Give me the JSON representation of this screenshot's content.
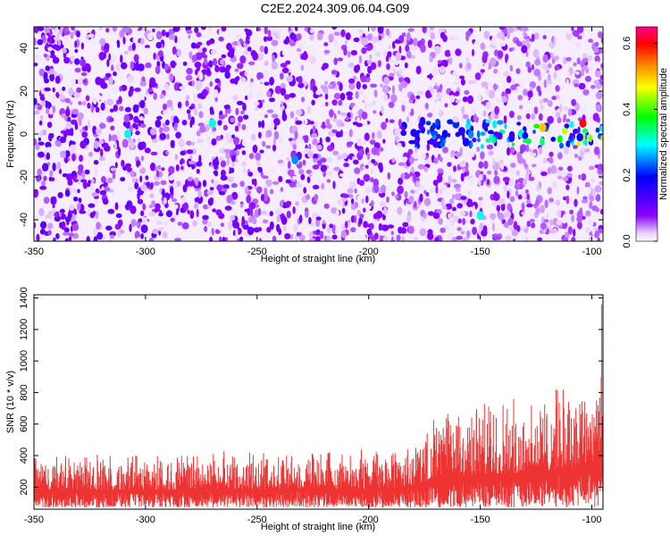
{
  "title": "C2E2.2024.309.06.04.G09",
  "chart_data": [
    {
      "type": "heatmap",
      "xlabel": "Height of straight line (km)",
      "ylabel": "Frequency (Hz)",
      "xlim": [
        -350,
        -95
      ],
      "ylim": [
        -50,
        50
      ],
      "x_ticks": [
        -350,
        -300,
        -250,
        -200,
        -150,
        -100
      ],
      "y_ticks": [
        -40,
        -20,
        0,
        20,
        40
      ],
      "colorbar": {
        "label": "Normalized spectral amplitude",
        "range": [
          0.0,
          0.65
        ],
        "ticks": [
          0.0,
          0.2,
          0.4,
          0.6
        ],
        "colors": [
          "#ffffff",
          "#8a00ff",
          "#0000ff",
          "#00ffff",
          "#00ff00",
          "#ffff00",
          "#ff8800",
          "#ff0000",
          "#ff0088"
        ]
      },
      "signal_band": {
        "frequency_hz": 0,
        "from_km": -185,
        "to_km": -95,
        "peak_amplitude": 0.6
      },
      "features": [
        {
          "x_km": -308,
          "y_hz": 0,
          "amplitude": 0.3
        },
        {
          "x_km": -270,
          "y_hz": 5,
          "amplitude": 0.3
        },
        {
          "x_km": -233,
          "y_hz": -12,
          "amplitude": 0.25
        },
        {
          "x_km": -150,
          "y_hz": -38,
          "amplitude": 0.3
        },
        {
          "x_km": -122,
          "y_hz": 3,
          "amplitude": 0.5
        },
        {
          "x_km": -104,
          "y_hz": 5,
          "amplitude": 0.6
        }
      ]
    },
    {
      "type": "area",
      "xlabel": "Height of straight line (km)",
      "ylabel": "SNR (10 * v/v)",
      "xlim": [
        -350,
        -95
      ],
      "ylim": [
        60,
        1420
      ],
      "x_ticks": [
        -350,
        -300,
        -250,
        -200,
        -150,
        -100
      ],
      "y_ticks": [
        200,
        400,
        600,
        800,
        1000,
        1200,
        1400
      ],
      "color": "#ee3333",
      "envelope": {
        "x": [
          -350,
          -300,
          -250,
          -200,
          -180,
          -170,
          -150,
          -130,
          -120,
          -110,
          -100,
          -96
        ],
        "baseline": [
          180,
          180,
          185,
          190,
          200,
          260,
          280,
          290,
          300,
          320,
          350,
          400
        ],
        "upper": [
          430,
          430,
          440,
          450,
          500,
          700,
          800,
          820,
          850,
          900,
          1000,
          1420
        ]
      }
    }
  ]
}
